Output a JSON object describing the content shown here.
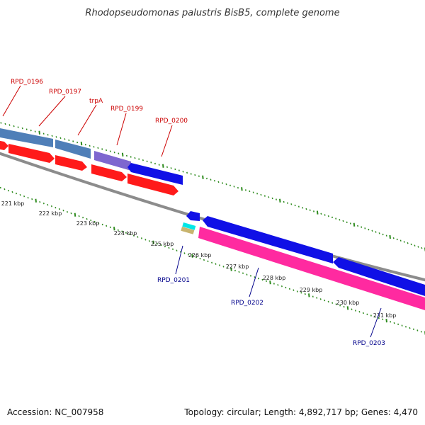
{
  "title": "Rhodopseudomonas palustris BisB5, complete genome",
  "footer": {
    "accession": "Accession: NC_007958",
    "summary": "Topology: circular; Length: 4,892,717 bp; Genes: 4,470"
  },
  "colors": {
    "backbone": "#8c8c8c",
    "tick": "#2e8b1e",
    "forward_gene": "#ff1a1a",
    "reverse_gene": "#1010e6",
    "rna_gene": "#ff2aa0",
    "cog_steelblue": "#4f7fb8",
    "cog_purple": "#7e67cf",
    "cog_cyan": "#00e6e6",
    "cog_tan": "#c8b46e",
    "top_label": "#cc0000",
    "bottom_label": "#00008b"
  },
  "kbp_labels": [
    "221 kbp",
    "222 kbp",
    "223 kbp",
    "224 kbp",
    "225 kbp",
    "226 kbp",
    "227 kbp",
    "228 kbp",
    "229 kbp",
    "230 kbp",
    "231 kbp"
  ],
  "gene_labels_top": [
    "RPD_0196",
    "RPD_0197",
    "trpA",
    "RPD_0199",
    "RPD_0200"
  ],
  "gene_labels_bottom": [
    "RPD_0201",
    "RPD_0202",
    "RPD_0203"
  ]
}
